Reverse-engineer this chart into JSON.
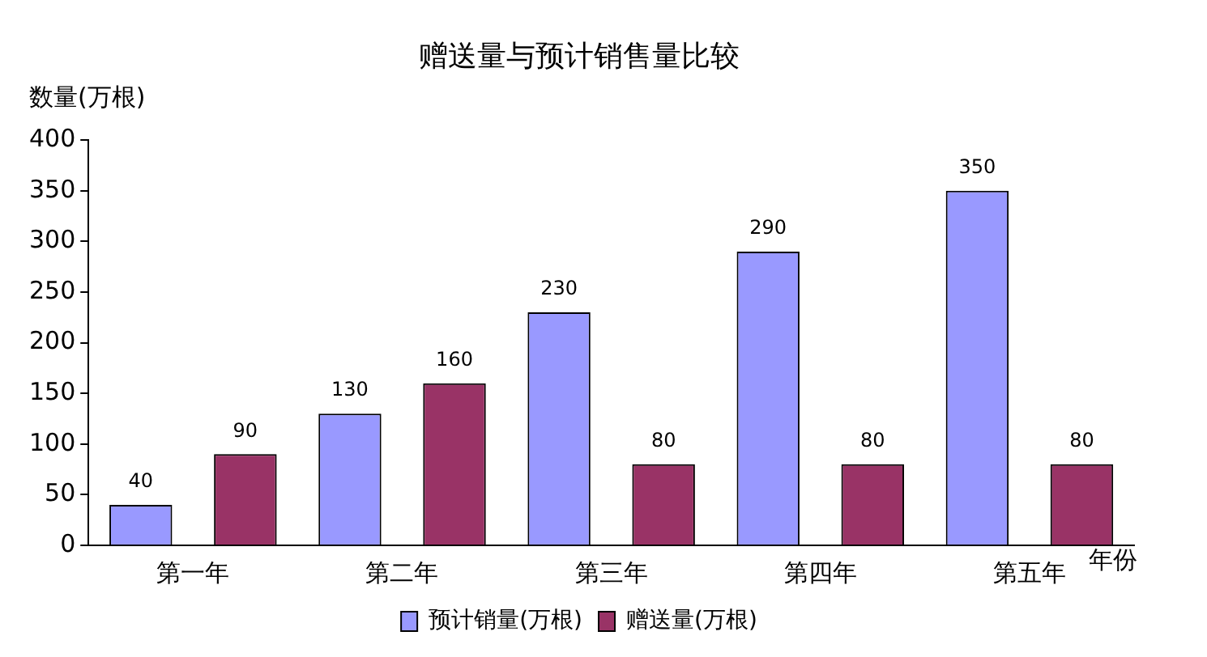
{
  "chart_data": {
    "type": "bar",
    "title": "赠送量与预计销售量比较",
    "ylabel": "数量(万根)",
    "xlabel": "年份",
    "categories": [
      "第一年",
      "第二年",
      "第三年",
      "第四年",
      "第五年"
    ],
    "series": [
      {
        "name": "预计销量(万根)",
        "color": "#9999ff",
        "values": [
          40,
          130,
          230,
          290,
          350
        ]
      },
      {
        "name": "赠送量(万根)",
        "color": "#993366",
        "values": [
          90,
          160,
          80,
          80,
          80
        ]
      }
    ],
    "ylim": [
      0,
      400
    ],
    "yticks": [
      0,
      50,
      100,
      150,
      200,
      250,
      300,
      350,
      400
    ],
    "grid": false,
    "legend": "bottom",
    "data_labels": true
  }
}
